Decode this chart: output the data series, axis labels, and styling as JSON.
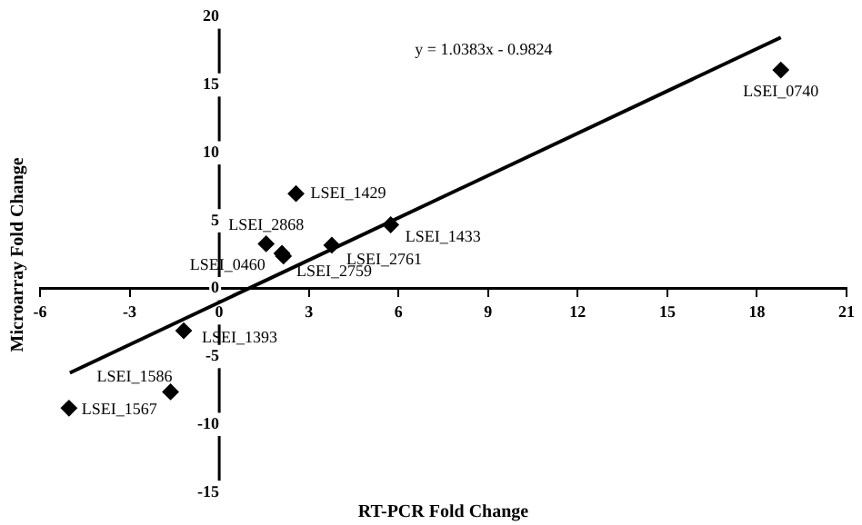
{
  "chart_data": {
    "type": "scatter",
    "xlabel": "RT-PCR Fold Change",
    "ylabel": "Microarray Fold Change",
    "xlim": [
      -6,
      21
    ],
    "xticks": [
      -6,
      -3,
      0,
      3,
      6,
      9,
      12,
      15,
      18,
      21
    ],
    "ylim": [
      -15,
      20
    ],
    "yticks": [
      -15,
      -10,
      -5,
      0,
      5,
      10,
      15,
      20
    ],
    "grid": false,
    "legend": false,
    "series": [
      {
        "type": "scatter",
        "marker": "diamond",
        "color": "#000000",
        "x": [
          18.8,
          2.57,
          5.74,
          3.77,
          1.57,
          2.15,
          2.1,
          -1.19,
          -1.63,
          -5.03
        ],
        "values": [
          16.1,
          7.0,
          4.7,
          3.2,
          3.3,
          2.4,
          2.6,
          -3.1,
          -7.6,
          -8.8
        ]
      },
      {
        "type": "line",
        "marker": "none",
        "line_style": "solid",
        "color": "#000000",
        "x": [
          -5,
          18.8
        ],
        "values": [
          -6.2,
          18.5
        ]
      }
    ],
    "annotations": [
      "y = 1.0383x - 0.9824",
      {
        "text": "LSEI_0740",
        "x": 18.8,
        "y": 16.1
      },
      {
        "text": "LSEI_1429",
        "x": 2.57,
        "y": 7.0
      },
      {
        "text": "LSEI_1433",
        "x": 5.74,
        "y": 4.7
      },
      {
        "text": "LSEI_2761",
        "x": 3.77,
        "y": 3.2
      },
      {
        "text": "LSEI_2868",
        "x": 1.57,
        "y": 3.3
      },
      {
        "text": "LSEI_0460",
        "x": 2.15,
        "y": 2.4
      },
      {
        "text": "LSEI_2759",
        "x": 2.1,
        "y": 2.6
      },
      {
        "text": "LSEI_1393",
        "x": -1.19,
        "y": -3.1
      },
      {
        "text": "LSEI_1586",
        "x": -1.63,
        "y": -7.6
      },
      {
        "text": "LSEI_1567",
        "x": -5.03,
        "y": -8.8
      }
    ]
  }
}
